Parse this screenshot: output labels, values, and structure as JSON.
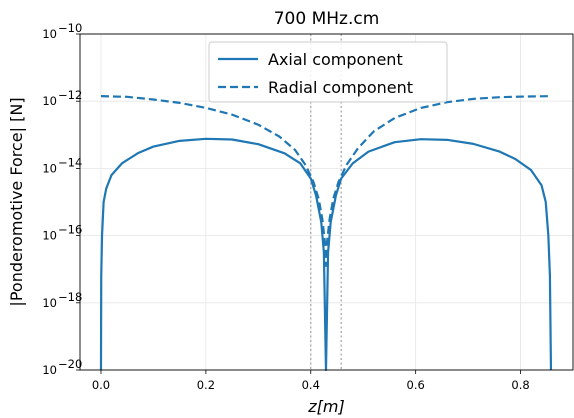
{
  "chart_data": {
    "type": "line",
    "title": "700 MHz.cm",
    "xlabel": "z[m]",
    "ylabel": "|Ponderomotive Force| [N]",
    "xlim": [
      -0.04,
      0.9
    ],
    "ylim_log10": [
      -20,
      -10
    ],
    "yscale": "log",
    "grid": true,
    "legend_position": "top-center",
    "x_ticks": [
      0.0,
      0.2,
      0.4,
      0.6,
      0.8
    ],
    "x_tick_labels": [
      "0.0",
      "0.2",
      "0.4",
      "0.6",
      "0.8"
    ],
    "y_ticks_log10": [
      -20,
      -18,
      -16,
      -14,
      -12,
      -10
    ],
    "y_tick_labels": [
      "10",
      "10",
      "10",
      "10",
      "10",
      "10"
    ],
    "y_tick_exponents": [
      "−20",
      "−18",
      "−16",
      "−14",
      "−12",
      "−10"
    ],
    "vlines": [
      0.4,
      0.458
    ],
    "series": [
      {
        "name": "Axial component",
        "style": "solid",
        "color": "#1f77b4",
        "x": [
          0.0,
          0.0005,
          0.002,
          0.005,
          0.01,
          0.02,
          0.04,
          0.07,
          0.1,
          0.15,
          0.2,
          0.25,
          0.3,
          0.35,
          0.38,
          0.4,
          0.41,
          0.42,
          0.425,
          0.429,
          0.433,
          0.438,
          0.448,
          0.458,
          0.48,
          0.51,
          0.56,
          0.61,
          0.66,
          0.71,
          0.76,
          0.79,
          0.82,
          0.84,
          0.848,
          0.853,
          0.856,
          0.858
        ],
        "y_log10": [
          -20.0,
          -17.2,
          -16.0,
          -15.0,
          -14.6,
          -14.2,
          -13.85,
          -13.55,
          -13.35,
          -13.18,
          -13.12,
          -13.14,
          -13.28,
          -13.55,
          -13.85,
          -14.3,
          -14.8,
          -15.6,
          -16.5,
          -20.0,
          -16.5,
          -15.6,
          -14.8,
          -14.3,
          -13.85,
          -13.5,
          -13.22,
          -13.13,
          -13.15,
          -13.27,
          -13.5,
          -13.72,
          -14.05,
          -14.5,
          -15.0,
          -16.0,
          -17.2,
          -20.0
        ]
      },
      {
        "name": "Radial component",
        "style": "dashed",
        "color": "#1f77b4",
        "x": [
          0.0,
          0.05,
          0.1,
          0.15,
          0.2,
          0.25,
          0.3,
          0.34,
          0.37,
          0.39,
          0.405,
          0.415,
          0.422,
          0.427,
          0.429,
          0.431,
          0.436,
          0.443,
          0.453,
          0.468,
          0.49,
          0.52,
          0.56,
          0.61,
          0.66,
          0.71,
          0.76,
          0.81,
          0.858
        ],
        "y_log10": [
          -11.85,
          -11.87,
          -11.95,
          -12.05,
          -12.2,
          -12.4,
          -12.7,
          -13.05,
          -13.45,
          -13.9,
          -14.4,
          -14.9,
          -15.5,
          -16.2,
          -16.9,
          -16.2,
          -15.5,
          -14.9,
          -14.4,
          -13.9,
          -13.4,
          -12.9,
          -12.5,
          -12.2,
          -12.03,
          -11.93,
          -11.88,
          -11.86,
          -11.85
        ]
      }
    ]
  }
}
